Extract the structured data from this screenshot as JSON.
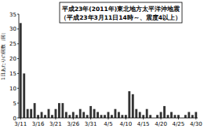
{
  "chart_data": {
    "type": "bar",
    "title": "平成23年(2011年)東北地方太平洋沖地震",
    "subtitle": "（平成23年3月11日14時～、震度4以上）",
    "y_label": "1日あたりの回数（回）",
    "categories": [
      "3/11",
      null,
      null,
      null,
      null,
      "3/16",
      null,
      null,
      null,
      null,
      "3/21",
      null,
      null,
      null,
      null,
      "3/26",
      null,
      null,
      null,
      null,
      "3/31",
      null,
      null,
      null,
      null,
      "4/5",
      null,
      null,
      null,
      null,
      "4/10",
      null,
      null,
      null,
      null,
      "4/15",
      null,
      null,
      null,
      null,
      "4/20",
      null,
      null,
      null,
      null,
      "4/25",
      null,
      null,
      null,
      null,
      "4/30"
    ],
    "values": [
      32,
      15,
      3,
      3,
      5,
      1,
      2,
      1,
      3,
      1,
      3,
      5,
      5,
      2,
      1,
      2,
      1,
      3,
      2,
      1,
      4,
      3,
      2,
      1,
      1,
      2,
      1,
      3,
      2,
      1,
      1,
      9,
      8,
      3,
      2,
      1,
      3,
      1,
      0,
      1,
      2,
      4,
      1,
      2,
      1,
      1,
      0,
      1,
      2,
      1,
      2
    ],
    "color": "#333333",
    "ylim": [
      0,
      35
    ],
    "yticks": [
      0,
      5,
      10,
      15,
      20,
      25,
      30,
      35
    ],
    "grid": false
  }
}
